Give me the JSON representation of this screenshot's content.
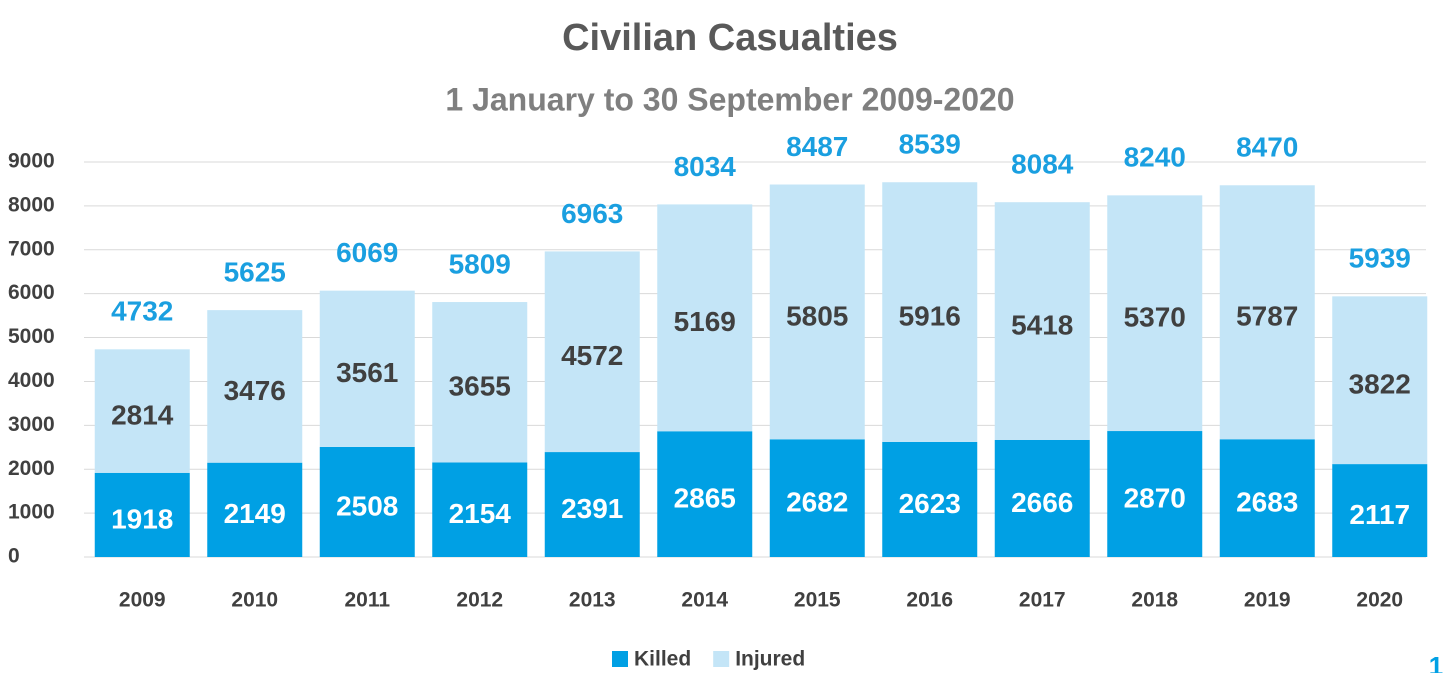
{
  "chart_data": {
    "type": "stacked-bar",
    "title": "Civilian Casualties",
    "subtitle": "1 January to 30 September 2009-2020",
    "categories": [
      "2009",
      "2010",
      "2011",
      "2012",
      "2013",
      "2014",
      "2015",
      "2016",
      "2017",
      "2018",
      "2019",
      "2020"
    ],
    "series": [
      {
        "name": "Killed",
        "color": "#00a0e4",
        "values": [
          1918,
          2149,
          2508,
          2154,
          2391,
          2865,
          2682,
          2623,
          2666,
          2870,
          2683,
          2117
        ]
      },
      {
        "name": "Injured",
        "color": "#c4e5f7",
        "values": [
          2814,
          3476,
          3561,
          3655,
          4572,
          5169,
          5805,
          5916,
          5418,
          5370,
          5787,
          3822
        ]
      }
    ],
    "totals": [
      4732,
      5625,
      6069,
      5809,
      6963,
      8034,
      8487,
      8539,
      8084,
      8240,
      8470,
      5939
    ],
    "ylim": [
      0,
      9000
    ],
    "yticks": [
      0,
      1000,
      2000,
      3000,
      4000,
      5000,
      6000,
      7000,
      8000,
      9000
    ],
    "grid": true,
    "legend": "bottom",
    "page_number": "1"
  }
}
